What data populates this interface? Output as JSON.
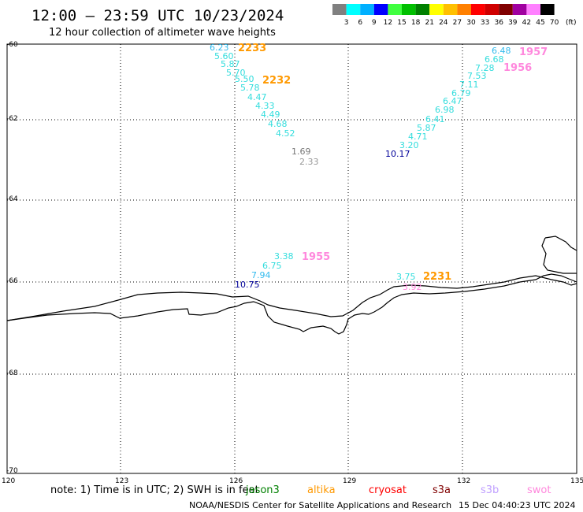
{
  "header": {
    "title": "12:00 – 23:59 UTC 10/23/2024",
    "subtitle": "12 hour collection of altimeter wave heights"
  },
  "legend": {
    "labels": [
      "3",
      "6",
      "9",
      "12",
      "15",
      "18",
      "21",
      "24",
      "27",
      "30",
      "33",
      "36",
      "39",
      "42",
      "45",
      "70"
    ],
    "unit": "(ft)",
    "colors": [
      "#808080",
      "#00ffff",
      "#00b0ff",
      "#0000ff",
      "#40ff40",
      "#00c000",
      "#008000",
      "#ffff00",
      "#ffc000",
      "#ff8000",
      "#ff0000",
      "#d00000",
      "#800000",
      "#a000a0",
      "#ff80ff",
      "#000000"
    ]
  },
  "axes": {
    "lat_labels": [
      "-60",
      "-62",
      "-64",
      "-66",
      "-68",
      "-70"
    ],
    "lon_labels": [
      "120",
      "123",
      "126",
      "129",
      "132",
      "135"
    ]
  },
  "track_west_upper": {
    "values": [
      {
        "t": "6.23",
        "c": "#33bbee"
      },
      {
        "t": "5.60",
        "c": "#33dddd"
      },
      {
        "t": "5.87",
        "c": "#33dddd"
      },
      {
        "t": "5.70",
        "c": "#33dddd"
      },
      {
        "t": "5.50",
        "c": "#33dddd"
      },
      {
        "t": "5.78",
        "c": "#33dddd"
      },
      {
        "t": "4.47",
        "c": "#33dddd"
      },
      {
        "t": "4.33",
        "c": "#33dddd"
      },
      {
        "t": "4.49",
        "c": "#33dddd"
      },
      {
        "t": "4.68",
        "c": "#33dddd"
      },
      {
        "t": "4.52",
        "c": "#33dddd"
      }
    ],
    "pass_labels": [
      {
        "t": "2233",
        "c": "#ff9900"
      },
      {
        "t": "2232",
        "c": "#ff9900"
      }
    ],
    "grey": [
      {
        "t": "1.69",
        "c": "#777777"
      },
      {
        "t": "2.33",
        "c": "#999999"
      }
    ]
  },
  "track_east": {
    "values": [
      {
        "t": "6.48",
        "c": "#33bbee"
      },
      {
        "t": "6.68",
        "c": "#33dddd"
      },
      {
        "t": "7.28",
        "c": "#33dddd"
      },
      {
        "t": "7.53",
        "c": "#33dddd"
      },
      {
        "t": "7.11",
        "c": "#33dddd"
      },
      {
        "t": "6.79",
        "c": "#33dddd"
      },
      {
        "t": "6.47",
        "c": "#33dddd"
      },
      {
        "t": "6.98",
        "c": "#33dddd"
      },
      {
        "t": "6.41",
        "c": "#33dddd"
      },
      {
        "t": "5.87",
        "c": "#33dddd"
      },
      {
        "t": "4.71",
        "c": "#33dddd"
      },
      {
        "t": "3.20",
        "c": "#33dddd"
      },
      {
        "t": "10.17",
        "c": "#000099"
      }
    ],
    "pass_labels": [
      {
        "t": "1957",
        "c": "#ff88dd"
      },
      {
        "t": "1956",
        "c": "#ff88dd"
      }
    ]
  },
  "track_west_lower": {
    "values": [
      {
        "t": "3.38",
        "c": "#33dddd"
      },
      {
        "t": "6.75",
        "c": "#33dddd"
      },
      {
        "t": "7.94",
        "c": "#33bbee"
      },
      {
        "t": "10.75",
        "c": "#000099"
      }
    ],
    "pass_labels": [
      {
        "t": "1955",
        "c": "#ff88dd"
      }
    ]
  },
  "track_coast": {
    "values": [
      {
        "t": "3.75",
        "c": "#33dddd"
      },
      {
        "t": "3.92",
        "c": "#ff88dd"
      }
    ],
    "pass_labels": [
      {
        "t": "2231",
        "c": "#ff9900"
      }
    ]
  },
  "footer": {
    "note": "note:  1) Time is in UTC; 2) SWH is in feet",
    "satellites": [
      {
        "t": "jason3",
        "c": "#008000"
      },
      {
        "t": "altika",
        "c": "#ff9900"
      },
      {
        "t": "cryosat",
        "c": "#ff0000"
      },
      {
        "t": "s3a",
        "c": "#800000"
      },
      {
        "t": "s3b",
        "c": "#c0a0ff"
      },
      {
        "t": "swot",
        "c": "#ff88dd"
      }
    ],
    "credit": "NOAA/NESDIS Center for Satellite Applications and Research",
    "timestamp": "15 Dec 04:40:23 UTC 2024"
  }
}
